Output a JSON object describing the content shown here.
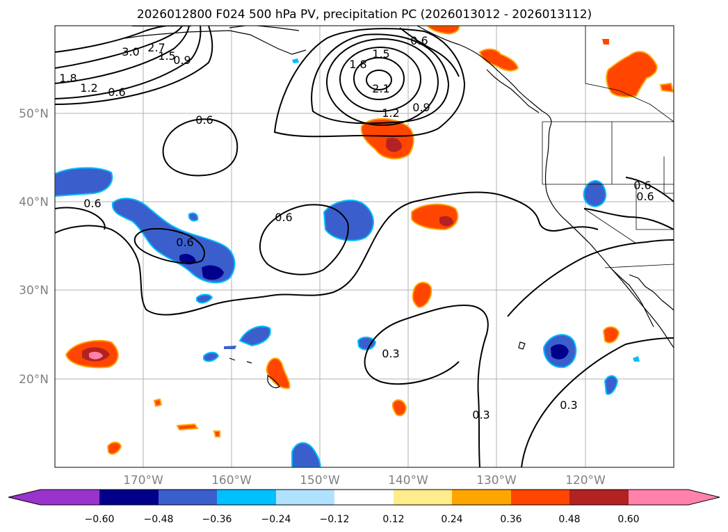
{
  "title": "2026012800 F024 500 hPa PV, precipitation PC (2026013012 - 2026013112)",
  "map": {
    "lat_labels": [
      "50°N",
      "40°N",
      "30°N",
      "20°N"
    ],
    "lon_labels": [
      "170°W",
      "160°W",
      "150°W",
      "140°W",
      "130°W",
      "120°W"
    ],
    "lat_range": [
      10,
      60
    ],
    "lon_range": [
      -180,
      -110
    ],
    "contour_labels": [
      "3.0",
      "2.7",
      "1.5",
      "0.9",
      "1.8",
      "1.2",
      "0.6",
      "0.6",
      "1.5",
      "1.8",
      "2.1",
      "1.2",
      "0.9",
      "0.6",
      "0.6",
      "0.6",
      "0.6",
      "0.6",
      "0.3",
      "0.3",
      "0.3",
      "0.6"
    ]
  },
  "colorbar": {
    "ticks": [
      "−0.60",
      "−0.48",
      "−0.36",
      "−0.24",
      "−0.12",
      "0.12",
      "0.24",
      "0.36",
      "0.48",
      "0.60"
    ],
    "colors": [
      "#9933cc",
      "#00008b",
      "#3a5fcd",
      "#00bfff",
      "#b0e2ff",
      "#ffffff",
      "#ffec8b",
      "#ffa500",
      "#ff4500",
      "#b22222",
      "#ff82ab"
    ],
    "extend": "both"
  },
  "colors": {
    "neg_strong": "#00008b",
    "neg_mid": "#3a5fcd",
    "neg_light": "#00bfff",
    "pos_light": "#ffa500",
    "pos_mid": "#ff4500",
    "pos_strong": "#b22222",
    "pos_max": "#ff82ab"
  }
}
